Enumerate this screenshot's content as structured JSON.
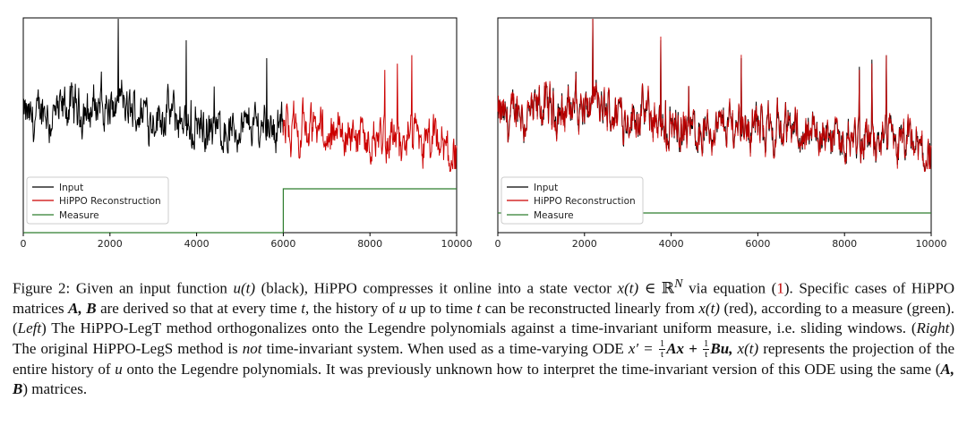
{
  "chart_data": [
    {
      "type": "line",
      "panel": "left",
      "xlim": [
        0,
        10000
      ],
      "x_ticks": [
        "0",
        "2000",
        "4000",
        "6000",
        "8000",
        "10000"
      ],
      "legend": [
        "Input",
        "HiPPO Reconstruction",
        "Measure"
      ],
      "legend_position": "lower-left",
      "series": [
        {
          "name": "Input",
          "color": "#000000",
          "x_range": [
            0,
            6000
          ]
        },
        {
          "name": "HiPPO Reconstruction",
          "color": "#cc0000",
          "x_range": [
            6000,
            10000
          ]
        },
        {
          "name": "Measure",
          "color": "#2e7d2e",
          "x": [
            0,
            6000,
            6000,
            10000
          ],
          "y": [
            0,
            0,
            1,
            1
          ]
        }
      ]
    },
    {
      "type": "line",
      "panel": "right",
      "xlim": [
        0,
        10000
      ],
      "x_ticks": [
        "0",
        "2000",
        "4000",
        "6000",
        "8000",
        "10000"
      ],
      "legend": [
        "Input",
        "HiPPO Reconstruction",
        "Measure"
      ],
      "legend_position": "lower-left",
      "series": [
        {
          "name": "Input",
          "color": "#000000",
          "x_range": [
            0,
            10000
          ]
        },
        {
          "name": "HiPPO Reconstruction",
          "color": "#cc0000",
          "x_range": [
            0,
            10000
          ]
        },
        {
          "name": "Measure",
          "color": "#2e7d2e",
          "x": [
            0,
            10000
          ],
          "y": [
            0.2,
            0.2
          ]
        }
      ]
    }
  ],
  "caption": {
    "lead": "Figure 2: Given an input function",
    "u_t": "u(t)",
    "black": "(black), HiPPO compresses it online into a state vector",
    "x_t": "x(t)",
    "in_r": "∈ ℝ",
    "sup_n": "N",
    "via": "via equation (",
    "ref": "1",
    "after_ref": "). Specific cases of HiPPO matrices",
    "ab": "A, B",
    "derived": "are derived so that at every time",
    "t1": "t",
    "history": ", the history of",
    "u1": "u",
    "up_to": "up to time",
    "t2": "t",
    "recon": "can be reconstructed linearly from",
    "x_t2": "x(t)",
    "red": "(red), according to a measure (green). (",
    "left": "Left",
    "legt": ") The HiPPO-LegT method orthogonalizes onto the Legendre polynomials against a time-invariant uniform measure, i.e. sliding windows. (",
    "right": "Right",
    "legs": ") The original HiPPO-LegS method is",
    "not": "not",
    "time_inv": "time-invariant system. When used as a time-varying ODE",
    "xprime": "x′ =",
    "one": "1",
    "tt": "t",
    "ax": "Ax +",
    "bu": "Bu,",
    "x_t3": "x(t)",
    "proj": "represents the projection of the entire history of",
    "u2": "u",
    "onto": "onto the Legendre polynomials. It was previously unknown how to interpret the time-invariant version of this ODE using the same (",
    "ab2": "A, B",
    "end": ") matrices."
  }
}
